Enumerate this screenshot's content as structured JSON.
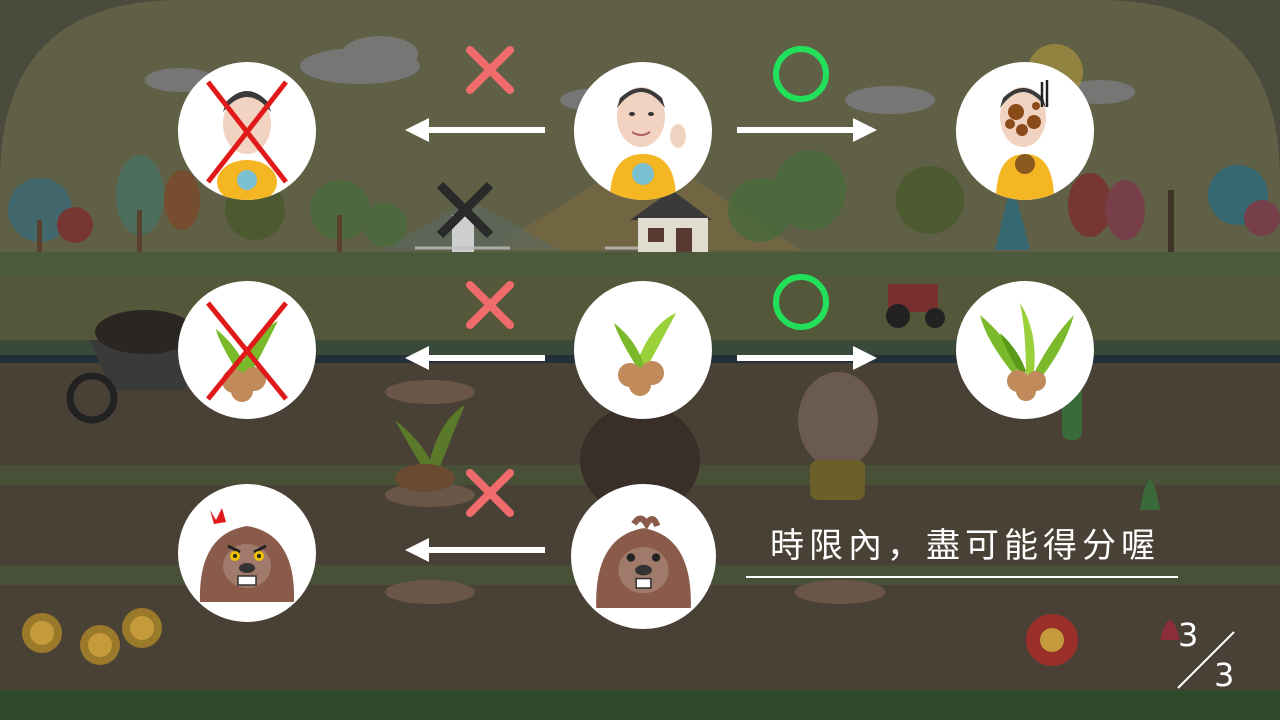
{
  "rules": [
    {
      "id": "farmer",
      "left_result": "wrong",
      "right_result": "correct",
      "left_icon": "crossed-farmer-icon",
      "center_icon": "farmer-icon",
      "right_icon": "dirty-farmer-icon"
    },
    {
      "id": "sprout",
      "left_result": "wrong",
      "right_result": "correct",
      "left_icon": "crossed-sprout-icon",
      "center_icon": "sprout-icon",
      "right_icon": "grown-sprout-icon"
    },
    {
      "id": "mole",
      "left_result": "wrong",
      "left_icon": "angry-mole-icon",
      "center_icon": "mole-icon"
    }
  ],
  "tip_text": "時限內，盡可能得分喔",
  "pagination": {
    "current": "3",
    "total": "3"
  },
  "colors": {
    "wrong": "#f06b6b",
    "correct": "#22e05a",
    "overlay": "#3f3e35"
  }
}
